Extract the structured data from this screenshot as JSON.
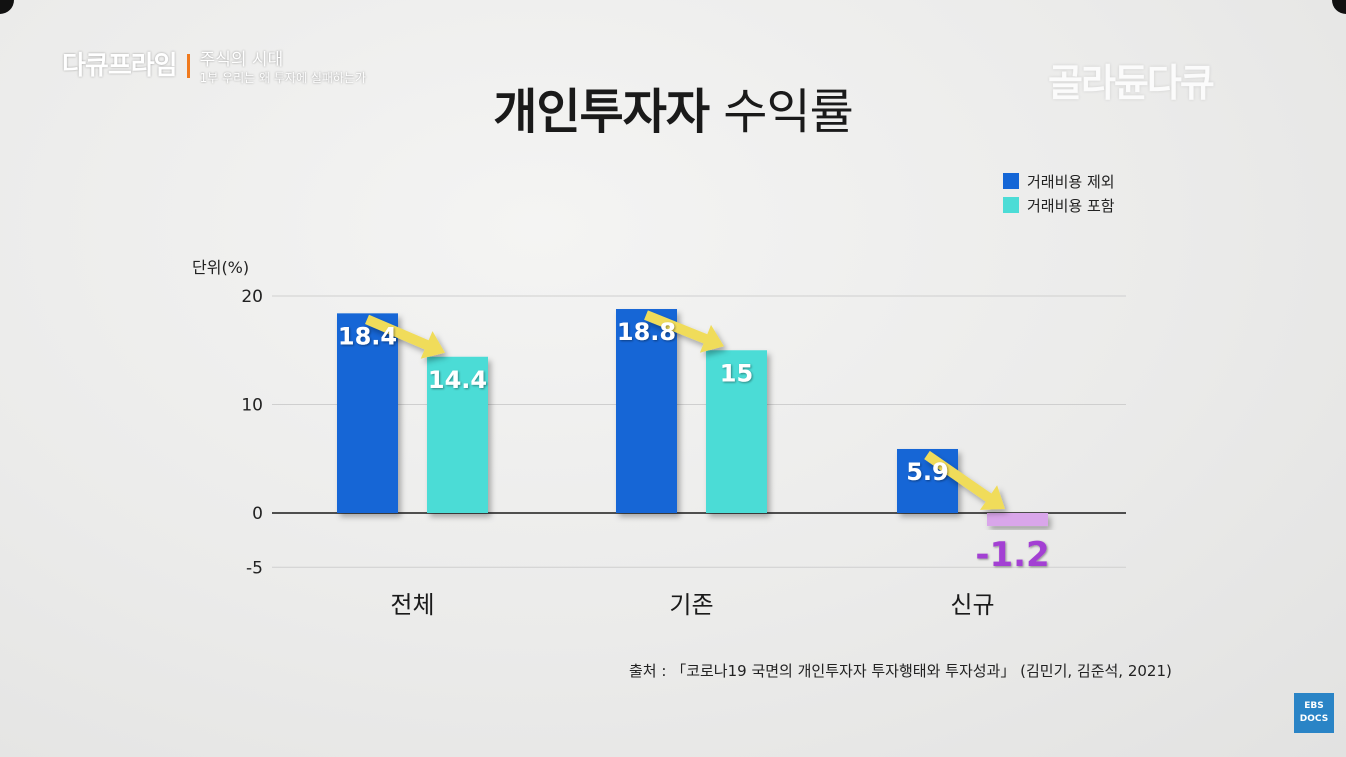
{
  "branding": {
    "program_logo": "다큐프라임",
    "series_title": "주식의 시대",
    "episode_subtitle": "1부 우리는 왜 투자에 실패하는가",
    "channel_logo": "골라듄다큐",
    "ebs_badge_line1": "EBS",
    "ebs_badge_line2": "DOCS"
  },
  "title_bold": "개인투자자",
  "title_light": "수익률",
  "colors": {
    "excl_cost": "#1466d6",
    "incl_cost": "#4cdcd6",
    "negative_incl": "#d9a6ea",
    "negative_label": "#a340d3",
    "arrow": "#f0dc5a"
  },
  "chart_data": {
    "type": "bar",
    "title": "개인투자자 수익률",
    "ylabel": "단위(%)",
    "categories": [
      "전체",
      "기존",
      "신규"
    ],
    "series": [
      {
        "name": "거래비용 제외",
        "values": [
          18.4,
          18.8,
          5.9
        ]
      },
      {
        "name": "거래비용 포함",
        "values": [
          14.4,
          15,
          -1.2
        ]
      }
    ],
    "value_labels": [
      [
        "18.4",
        "18.8",
        "5.9"
      ],
      [
        "14.4",
        "15",
        "-1.2"
      ]
    ],
    "ylim": [
      -5,
      20
    ],
    "yticks": [
      20,
      10,
      0,
      -5
    ],
    "grid": true,
    "legend_position": "top-right",
    "annotations": "arrows from 거래비용 제외 bar to 거래비용 포함 bar in each category"
  },
  "source_text": "출처 : 「코로나19 국면의 개인투자자 투자행태와 투자성과」 (김민기, 김준석, 2021)"
}
